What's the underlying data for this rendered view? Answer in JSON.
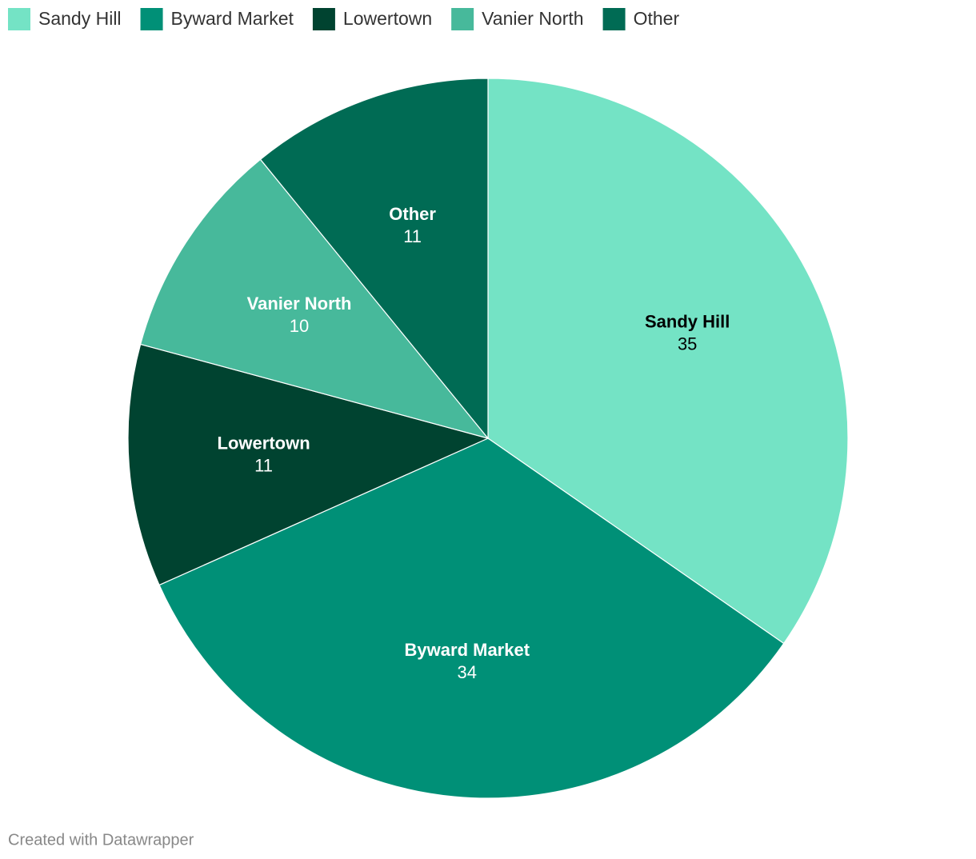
{
  "chart_data": {
    "type": "pie",
    "categories": [
      "Sandy Hill",
      "Byward Market",
      "Lowertown",
      "Vanier North",
      "Other"
    ],
    "values": [
      35,
      34,
      11,
      10,
      11
    ],
    "colors": [
      "#74e3c5",
      "#009077",
      "#004330",
      "#47b99b",
      "#006b54"
    ],
    "footer": "Created with Datawrapper"
  }
}
